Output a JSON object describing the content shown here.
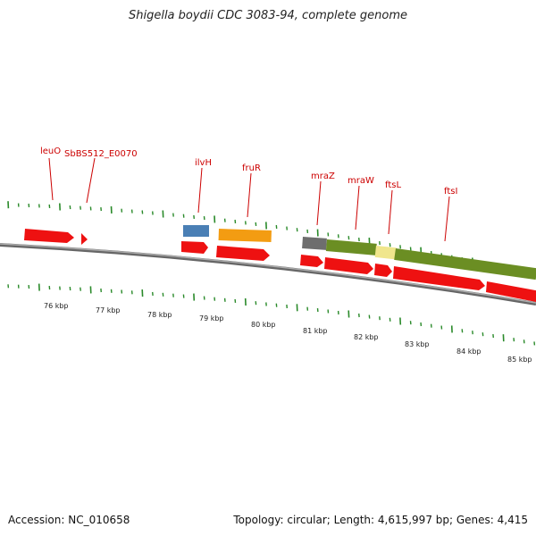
{
  "title": "Shigella boydii CDC 3083-94, complete genome",
  "accession_text": "Accession: NC_010658",
  "summary_text": "Topology: circular; Length: 4,615,997 bp; Genes: 4,415",
  "colors": {
    "gene_arrow": "#ee1111",
    "label": "#cc0000",
    "tick": "#2a8a2a",
    "backbone": "#888888",
    "gray_block": "#777777",
    "olive_block": "#6b8e23",
    "yellow_block": "#f0e68c",
    "blue_block": "#4a7fb5",
    "orange_block": "#f39c12"
  },
  "gene_labels": [
    "leuO",
    "SbBS512_E0070",
    "ilvH",
    "fruR",
    "mraZ",
    "mraW",
    "ftsL",
    "ftsI"
  ],
  "kbp_labels": [
    "76 kbp",
    "77 kbp",
    "78 kbp",
    "79 kbp",
    "80 kbp",
    "81 kbp",
    "82 kbp",
    "83 kbp",
    "84 kbp",
    "85 kbp"
  ]
}
